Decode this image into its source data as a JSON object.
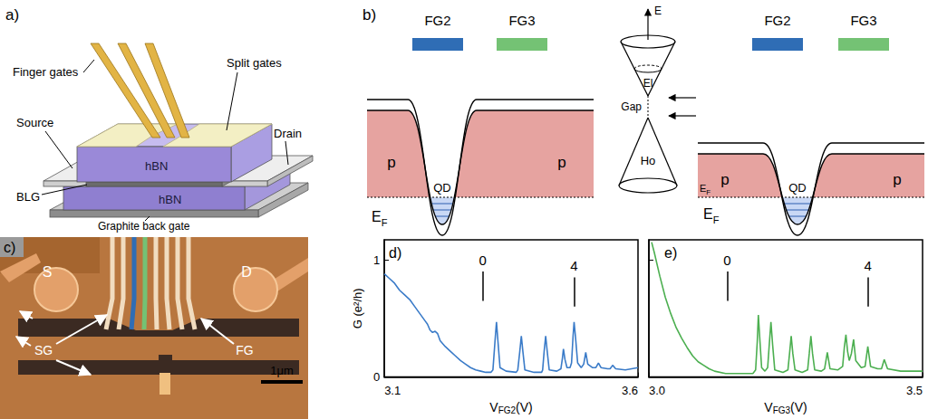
{
  "panels": {
    "a": {
      "label": "a)",
      "finger_gates": "Finger gates",
      "split_gates": "Split gates",
      "source": "Source",
      "drain": "Drain",
      "top_layer": "hBN",
      "bilayer": "BLG",
      "bottom_layer": "hBN",
      "back_gate": "Graphite back gate"
    },
    "b": {
      "label": "b)",
      "left": {
        "gates": [
          {
            "text": "FG2",
            "color": "#2f6db5"
          },
          {
            "text": "FG3",
            "color": "#74c274"
          }
        ],
        "dot": "QD",
        "regions": [
          "p",
          "p"
        ],
        "fermi": [
          {
            "base": "E",
            "sub": "F"
          }
        ]
      },
      "cones": {
        "axis": "E",
        "upper": "El",
        "gap": "Gap",
        "lower": "Ho"
      },
      "right": {
        "gates": [
          {
            "text": "FG2",
            "color": "#2f6db5"
          },
          {
            "text": "FG3",
            "color": "#74c274"
          }
        ],
        "dot": "QD",
        "regions": [
          "p",
          "p"
        ],
        "fermi": [
          {
            "base": "E",
            "sub": "F"
          },
          {
            "base": "E",
            "sub": "F"
          }
        ]
      }
    },
    "c": {
      "label": "c)",
      "source": "S",
      "drain": "D",
      "split_gates": "SG",
      "finger_gates": "FG",
      "scale_bar": "1μm"
    }
  },
  "chart_data": [
    {
      "type": "line",
      "title": "d)",
      "color": "#3a7bc8",
      "xlabel": {
        "base": "V",
        "sub": "FG2",
        "tail": "(V)"
      },
      "ylabel": "G (e²/h)",
      "xlim": [
        3.1,
        3.6
      ],
      "xticks": [
        3.1,
        3.6
      ],
      "ylim": [
        0,
        1.17
      ],
      "yticks": [
        0,
        1
      ],
      "grid": false,
      "x": [
        3.1,
        3.11,
        3.12,
        3.13,
        3.14,
        3.15,
        3.16,
        3.17,
        3.18,
        3.185,
        3.19,
        3.195,
        3.2,
        3.205,
        3.21,
        3.22,
        3.23,
        3.24,
        3.25,
        3.26,
        3.27,
        3.28,
        3.29,
        3.3,
        3.31,
        3.314,
        3.318,
        3.321,
        3.324,
        3.328,
        3.34,
        3.36,
        3.363,
        3.367,
        3.37,
        3.373,
        3.377,
        3.395,
        3.41,
        3.412,
        3.415,
        3.418,
        3.421,
        3.425,
        3.44,
        3.448,
        3.451,
        3.453,
        3.456,
        3.46,
        3.466,
        3.469,
        3.472,
        3.474,
        3.477,
        3.481,
        3.488,
        3.493,
        3.497,
        3.501,
        3.51,
        3.517,
        3.522,
        3.527,
        3.54,
        3.545,
        3.55,
        3.556,
        3.575,
        3.6
      ],
      "values": [
        0.88,
        0.84,
        0.8,
        0.74,
        0.7,
        0.66,
        0.6,
        0.54,
        0.48,
        0.45,
        0.4,
        0.38,
        0.39,
        0.37,
        0.31,
        0.26,
        0.22,
        0.18,
        0.14,
        0.11,
        0.08,
        0.06,
        0.05,
        0.04,
        0.04,
        0.06,
        0.3,
        0.47,
        0.3,
        0.08,
        0.05,
        0.04,
        0.06,
        0.22,
        0.35,
        0.22,
        0.06,
        0.04,
        0.04,
        0.06,
        0.22,
        0.35,
        0.22,
        0.06,
        0.05,
        0.07,
        0.16,
        0.24,
        0.15,
        0.08,
        0.08,
        0.12,
        0.35,
        0.47,
        0.33,
        0.12,
        0.08,
        0.11,
        0.21,
        0.11,
        0.08,
        0.08,
        0.12,
        0.08,
        0.07,
        0.07,
        0.1,
        0.07,
        0.06,
        0.08
      ],
      "annotations": [
        {
          "text": "0",
          "x": 3.294,
          "y": 0.65
        },
        {
          "text": "4",
          "x": 3.474,
          "y": 0.6
        }
      ]
    },
    {
      "type": "line",
      "title": "e)",
      "color": "#4caf50",
      "xlabel": {
        "base": "V",
        "sub": "FG3",
        "tail": "(V)"
      },
      "xlim": [
        3.0,
        3.5
      ],
      "xticks": [
        {
          "value": 3.0,
          "label": "3.0"
        },
        3.5
      ],
      "ylim": [
        0,
        1.17
      ],
      "yticks": [
        0,
        1
      ],
      "grid": false,
      "tick_labels": "x",
      "x": [
        3.005,
        3.01,
        3.02,
        3.03,
        3.04,
        3.05,
        3.06,
        3.07,
        3.08,
        3.09,
        3.1,
        3.11,
        3.12,
        3.14,
        3.16,
        3.18,
        3.19,
        3.195,
        3.198,
        3.2,
        3.203,
        3.206,
        3.212,
        3.217,
        3.22,
        3.223,
        3.226,
        3.23,
        3.245,
        3.254,
        3.257,
        3.26,
        3.263,
        3.267,
        3.28,
        3.29,
        3.293,
        3.296,
        3.299,
        3.303,
        3.315,
        3.321,
        3.326,
        3.331,
        3.345,
        3.354,
        3.357,
        3.36,
        3.363,
        3.366,
        3.37,
        3.374,
        3.378,
        3.388,
        3.395,
        3.4,
        3.405,
        3.418,
        3.425,
        3.43,
        3.436,
        3.46,
        3.48,
        3.5
      ],
      "values": [
        1.15,
        1.06,
        0.86,
        0.68,
        0.54,
        0.42,
        0.33,
        0.25,
        0.18,
        0.13,
        0.1,
        0.07,
        0.05,
        0.03,
        0.03,
        0.03,
        0.03,
        0.06,
        0.3,
        0.53,
        0.3,
        0.08,
        0.05,
        0.08,
        0.28,
        0.47,
        0.28,
        0.06,
        0.04,
        0.06,
        0.2,
        0.35,
        0.2,
        0.06,
        0.04,
        0.06,
        0.2,
        0.35,
        0.2,
        0.06,
        0.05,
        0.07,
        0.21,
        0.07,
        0.06,
        0.09,
        0.25,
        0.36,
        0.22,
        0.14,
        0.2,
        0.32,
        0.14,
        0.08,
        0.09,
        0.26,
        0.09,
        0.07,
        0.07,
        0.15,
        0.07,
        0.05,
        0.05,
        0.05
      ],
      "annotations": [
        {
          "text": "0",
          "x": 3.143,
          "y": 0.65
        },
        {
          "text": "4",
          "x": 3.4,
          "y": 0.6
        }
      ]
    }
  ]
}
